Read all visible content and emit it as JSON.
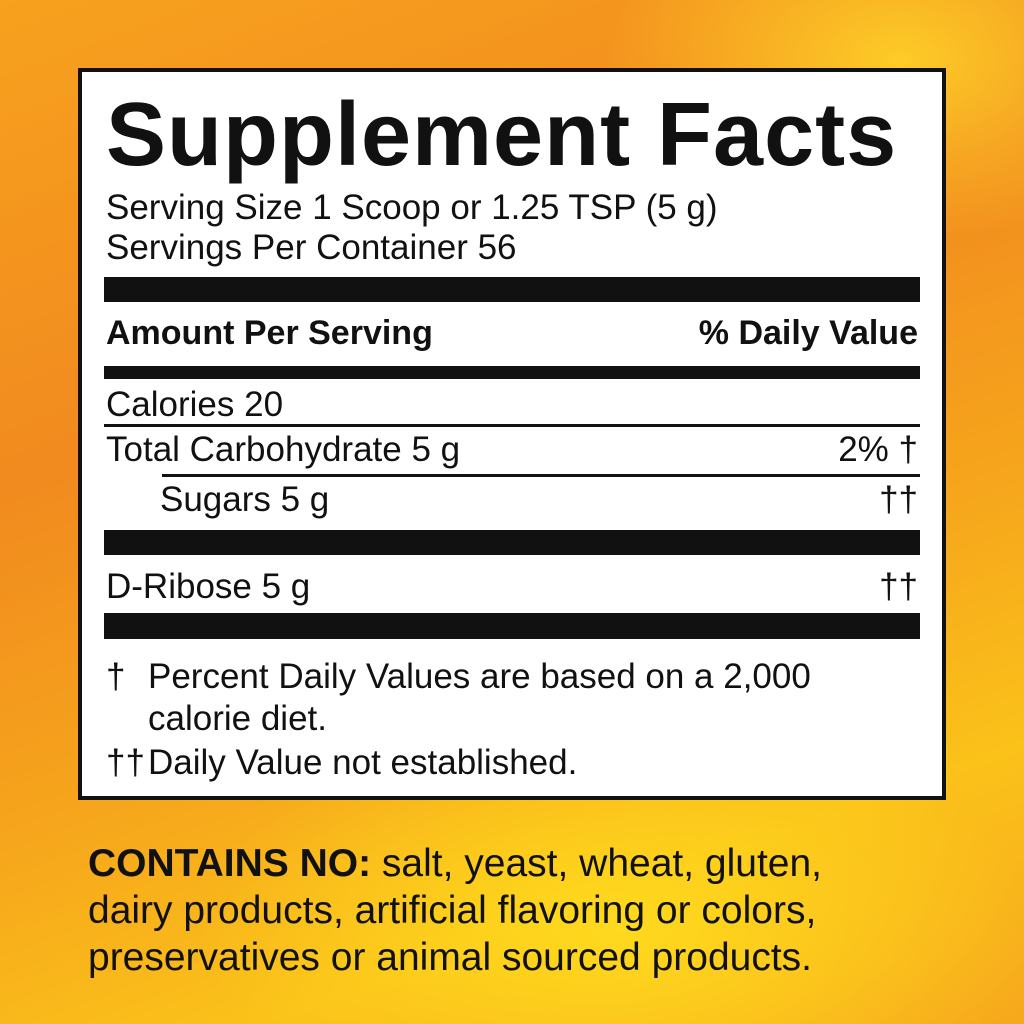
{
  "label": {
    "title": "Supplement Facts",
    "serving_size": "Serving Size 1 Scoop or 1.25 TSP (5 g)",
    "servings_per_container": "Servings Per Container 56",
    "header_left": "Amount Per Serving",
    "header_right": "% Daily Value",
    "rows": [
      {
        "name": "Calories 20",
        "dv": ""
      },
      {
        "name": "Total Carbohydrate 5 g",
        "dv": "2% †"
      },
      {
        "name": "Sugars 5 g",
        "dv": "††"
      },
      {
        "name": "D-Ribose 5 g",
        "dv": "††"
      }
    ],
    "footnotes": [
      {
        "mark": "†",
        "text_line1": "Percent Daily Values are based on a 2,000",
        "text_line2": "calorie diet."
      },
      {
        "mark": "††",
        "text_line1": "Daily Value not established."
      }
    ]
  },
  "contains": {
    "heading": "CONTAINS NO:",
    "line1": " salt, yeast, wheat, gluten,",
    "line2": "dairy products, artificial flavoring or colors,",
    "line3": "preservatives or animal sourced products."
  }
}
